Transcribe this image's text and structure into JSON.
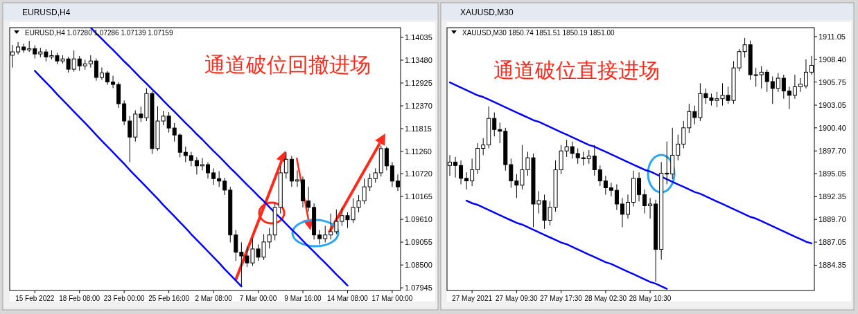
{
  "chart_data": [
    {
      "type": "candlestick",
      "subtitle": "EURUSD,H4",
      "title": "EURUSD,H4  1.07280 1.07286 1.07139 1.07159",
      "annotations": [
        "通道破位回撤进场"
      ],
      "categories": [
        null,
        null,
        null,
        null,
        "15 Feb 2022",
        null,
        null,
        null,
        null,
        null,
        null,
        null,
        "18 Feb 08:00",
        null,
        null,
        null,
        null,
        null,
        null,
        null,
        "23 Feb 00:00",
        null,
        null,
        null,
        null,
        null,
        null,
        null,
        "25 Feb 16:00",
        null,
        null,
        null,
        null,
        null,
        null,
        null,
        "2 Mar 08:00",
        null,
        null,
        null,
        null,
        null,
        null,
        null,
        "7 Mar 00:00",
        null,
        null,
        null,
        null,
        null,
        null,
        null,
        "9 Mar 16:00",
        null,
        null,
        null,
        null,
        null,
        null,
        null,
        "14 Mar 08:00",
        null,
        null,
        null,
        null,
        null,
        null,
        null,
        "17 Mar 00:00",
        null
      ],
      "ohlc": [
        [
          1.136,
          1.1385,
          1.133,
          1.1368
        ],
        [
          1.1368,
          1.1392,
          1.1362,
          1.138
        ],
        [
          1.138,
          1.1388,
          1.1366,
          1.1373
        ],
        [
          1.1373,
          1.1395,
          1.1368,
          1.1376
        ],
        [
          1.1376,
          1.1384,
          1.1352,
          1.1363
        ],
        [
          1.1363,
          1.1378,
          1.1355,
          1.1368
        ],
        [
          1.1368,
          1.1375,
          1.1345,
          1.1356
        ],
        [
          1.1356,
          1.1372,
          1.135,
          1.1359
        ],
        [
          1.1359,
          1.1366,
          1.1338,
          1.1346
        ],
        [
          1.1346,
          1.136,
          1.134,
          1.1351
        ],
        [
          1.1351,
          1.1356,
          1.1318,
          1.1326
        ],
        [
          1.1326,
          1.1372,
          1.132,
          1.1351
        ],
        [
          1.1351,
          1.1358,
          1.1322,
          1.1334
        ],
        [
          1.1334,
          1.1349,
          1.1325,
          1.1339
        ],
        [
          1.1339,
          1.136,
          1.133,
          1.1346
        ],
        [
          1.1346,
          1.1352,
          1.1298,
          1.1306
        ],
        [
          1.1306,
          1.133,
          1.13,
          1.1317
        ],
        [
          1.1317,
          1.1322,
          1.1288,
          1.1295
        ],
        [
          1.1295,
          1.131,
          1.128,
          1.1289
        ],
        [
          1.1289,
          1.1294,
          1.1232,
          1.1242
        ],
        [
          1.1242,
          1.125,
          1.119,
          1.12
        ],
        [
          1.12,
          1.1212,
          1.11,
          1.1161
        ],
        [
          1.1161,
          1.1226,
          1.115,
          1.1217
        ],
        [
          1.1217,
          1.1235,
          1.1198,
          1.1208
        ],
        [
          1.1208,
          1.128,
          1.12,
          1.1267
        ],
        [
          1.1267,
          1.1272,
          1.112,
          1.1133
        ],
        [
          1.1133,
          1.1236,
          1.1128,
          1.12
        ],
        [
          1.12,
          1.1225,
          1.119,
          1.1212
        ],
        [
          1.1212,
          1.1222,
          1.1172,
          1.1183
        ],
        [
          1.1183,
          1.1195,
          1.115,
          1.1166
        ],
        [
          1.1166,
          1.117,
          1.1112,
          1.1124
        ],
        [
          1.1124,
          1.1138,
          1.11,
          1.1116
        ],
        [
          1.1116,
          1.1125,
          1.109,
          1.1104
        ],
        [
          1.1104,
          1.1112,
          1.107,
          1.1091
        ],
        [
          1.1091,
          1.111,
          1.108,
          1.1094
        ],
        [
          1.1094,
          1.11,
          1.106,
          1.1074
        ],
        [
          1.1074,
          1.1085,
          1.1045,
          1.106
        ],
        [
          1.106,
          1.1078,
          1.104,
          1.1054
        ],
        [
          1.1054,
          1.1062,
          1.102,
          1.1032
        ],
        [
          1.1032,
          1.104,
          1.0905,
          1.0923
        ],
        [
          1.0923,
          1.0935,
          1.086,
          1.0881
        ],
        [
          1.0881,
          1.0905,
          1.08,
          1.0872
        ],
        [
          1.0872,
          1.0895,
          1.0845,
          1.0855
        ],
        [
          1.0855,
          1.0915,
          1.0848,
          1.0889
        ],
        [
          1.0889,
          1.09,
          1.086,
          1.0869
        ],
        [
          1.0869,
          1.0925,
          1.0862,
          1.0906
        ],
        [
          1.0906,
          1.094,
          1.089,
          1.0923
        ],
        [
          1.0923,
          1.1,
          1.091,
          1.099
        ],
        [
          1.099,
          1.109,
          1.0975,
          1.1074
        ],
        [
          1.1074,
          1.1124,
          1.106,
          1.1107
        ],
        [
          1.1107,
          1.1115,
          1.104,
          1.1054
        ],
        [
          1.1054,
          1.108,
          1.104,
          1.1057
        ],
        [
          1.1057,
          1.1065,
          1.099,
          1.1006
        ],
        [
          1.1006,
          1.104,
          1.098,
          1.099
        ],
        [
          1.099,
          1.1,
          1.0912,
          1.0923
        ],
        [
          1.0923,
          1.0935,
          1.09,
          1.0914
        ],
        [
          1.0914,
          1.0945,
          1.0905,
          1.0923
        ],
        [
          1.0923,
          1.0975,
          1.0912,
          1.0931
        ],
        [
          1.0931,
          1.0985,
          1.0925,
          1.0956
        ],
        [
          1.0956,
          1.099,
          1.0945,
          1.097
        ],
        [
          1.097,
          1.0978,
          1.094,
          1.096
        ],
        [
          1.096,
          1.1012,
          1.0952,
          1.099
        ],
        [
          1.099,
          1.102,
          1.0978,
          1.1006
        ],
        [
          1.1006,
          1.106,
          1.0998,
          1.104
        ],
        [
          1.104,
          1.1072,
          1.103,
          1.106
        ],
        [
          1.106,
          1.1085,
          1.105,
          1.1074
        ],
        [
          1.1074,
          1.114,
          1.1065,
          1.1133
        ],
        [
          1.1133,
          1.1138,
          1.108,
          1.1091
        ],
        [
          1.1091,
          1.11,
          1.104,
          1.1054
        ],
        [
          1.1054,
          1.107,
          1.103,
          1.104
        ]
      ],
      "series": [
        {
          "type": "line",
          "color": "#0000ff",
          "values": [
            null,
            null,
            null,
            null,
            null,
            null,
            null,
            null,
            null,
            null,
            null,
            null,
            null,
            null,
            1.1427,
            1.1413,
            1.14,
            1.1386,
            1.1373,
            1.1359,
            1.1345,
            1.1332,
            1.1318,
            1.1304,
            1.1291,
            1.1277,
            1.1264,
            1.125,
            1.1236,
            1.1223,
            1.1209,
            1.1195,
            1.1182,
            1.1168,
            1.1155,
            1.1141,
            1.1127,
            1.1114,
            1.11,
            1.1086,
            1.1073,
            1.1059,
            1.1045,
            1.1032,
            1.1018,
            1.1005,
            1.0991,
            1.0977,
            1.0964,
            1.095,
            1.0936,
            1.0923,
            1.0909,
            1.0895,
            1.0882,
            1.0868,
            1.0855,
            1.0841,
            1.0827,
            1.0814,
            1.08,
            null,
            null,
            null,
            null,
            null,
            null,
            null,
            null,
            null
          ]
        },
        {
          "type": "line",
          "color": "#0000ff",
          "values": [
            null,
            null,
            null,
            null,
            1.1322,
            1.1308,
            1.1294,
            1.128,
            1.1265,
            1.1251,
            1.1237,
            1.1223,
            1.1209,
            1.1195,
            1.1181,
            1.1166,
            1.1152,
            1.1138,
            1.1124,
            1.111,
            1.1096,
            1.1081,
            1.1067,
            1.1053,
            1.1039,
            1.1025,
            1.1011,
            1.0996,
            1.0982,
            1.0968,
            1.0954,
            1.094,
            1.0925,
            1.0911,
            1.0897,
            1.0883,
            1.0869,
            1.0855,
            1.084,
            1.0826,
            1.0812,
            1.0798,
            null,
            null,
            null,
            null,
            null,
            null,
            null,
            null,
            null,
            null,
            null,
            null,
            null,
            null,
            null,
            null,
            null,
            null,
            null,
            null,
            null,
            null,
            null,
            null,
            null,
            null,
            null,
            null
          ]
        }
      ],
      "ylim": [
        1.0788,
        1.1427
      ],
      "yticks": [
        {
          "value": 1.14035,
          "label": "1.14035"
        },
        {
          "value": 1.1348,
          "label": "1.13480"
        },
        {
          "value": 1.12925,
          "label": "1.12925"
        },
        {
          "value": 1.1237,
          "label": "1.12370"
        },
        {
          "value": 1.11815,
          "label": "1.11815"
        },
        {
          "value": 1.1126,
          "label": "1.11260"
        },
        {
          "value": 1.1072,
          "label": "1.10720"
        },
        {
          "value": 1.10165,
          "label": "1.10165"
        },
        {
          "value": 1.0961,
          "label": "1.09610"
        },
        {
          "value": 1.09055,
          "label": "1.09055"
        },
        {
          "value": 1.085,
          "label": "1.08500"
        },
        {
          "value": 1.07945,
          "label": "1.07945"
        }
      ]
    },
    {
      "type": "candlestick",
      "subtitle": "XAUUSD,M30",
      "title": "XAUUSD,M30  1850.74 1851.51 1850.19 1851.00",
      "annotations": [
        "通道破位直接进场"
      ],
      "categories": [
        null,
        null,
        null,
        null,
        "27 May 2021",
        null,
        null,
        null,
        null,
        null,
        null,
        null,
        "27 May 09:30",
        null,
        null,
        null,
        null,
        null,
        null,
        null,
        "27 May 17:30",
        null,
        null,
        null,
        null,
        null,
        null,
        null,
        "28 May 02:30",
        null,
        null,
        null,
        null,
        null,
        null,
        null,
        "28 May 10:30",
        null,
        null,
        null,
        null,
        null,
        null,
        null,
        null,
        null,
        null,
        null,
        null,
        null,
        null,
        null,
        null,
        null,
        null,
        null,
        null,
        null,
        null,
        null,
        null,
        null,
        null,
        null,
        null,
        null
      ],
      "ohlc": [
        [
          1896.0,
          1897.2,
          1894.8,
          1896.4
        ],
        [
          1896.4,
          1897.0,
          1894.6,
          1896.0
        ],
        [
          1896.0,
          1896.6,
          1893.8,
          1894.5
        ],
        [
          1894.5,
          1895.2,
          1893.2,
          1894.2
        ],
        [
          1894.2,
          1896.8,
          1893.6,
          1895.5
        ],
        [
          1895.5,
          1898.6,
          1895.0,
          1898.0
        ],
        [
          1898.0,
          1899.2,
          1897.2,
          1898.4
        ],
        [
          1898.4,
          1902.9,
          1898.0,
          1901.5
        ],
        [
          1901.5,
          1902.2,
          1899.4,
          1900.2
        ],
        [
          1900.2,
          1901.0,
          1898.6,
          1900.0
        ],
        [
          1900.0,
          1900.4,
          1895.4,
          1896.1
        ],
        [
          1896.1,
          1896.8,
          1893.4,
          1894.2
        ],
        [
          1894.2,
          1895.0,
          1892.2,
          1893.7
        ],
        [
          1893.7,
          1898.4,
          1893.2,
          1895.5
        ],
        [
          1895.5,
          1897.6,
          1894.8,
          1896.9
        ],
        [
          1896.9,
          1897.4,
          1888.8,
          1891.5
        ],
        [
          1891.5,
          1893.0,
          1890.4,
          1891.9
        ],
        [
          1891.9,
          1892.6,
          1888.6,
          1889.6
        ],
        [
          1889.6,
          1891.8,
          1889.0,
          1891.1
        ],
        [
          1891.1,
          1896.6,
          1890.6,
          1895.5
        ],
        [
          1895.5,
          1898.4,
          1895.0,
          1897.7
        ],
        [
          1897.7,
          1899.0,
          1897.0,
          1898.2
        ],
        [
          1898.2,
          1898.8,
          1896.8,
          1897.4
        ],
        [
          1897.4,
          1898.0,
          1896.2,
          1896.9
        ],
        [
          1896.9,
          1897.6,
          1896.0,
          1896.8
        ],
        [
          1896.8,
          1897.8,
          1896.2,
          1897.1
        ],
        [
          1897.1,
          1898.4,
          1894.8,
          1895.5
        ],
        [
          1895.5,
          1896.0,
          1893.6,
          1894.2
        ],
        [
          1894.2,
          1894.8,
          1892.6,
          1893.4
        ],
        [
          1893.4,
          1894.0,
          1892.4,
          1893.1
        ],
        [
          1893.1,
          1893.8,
          1890.8,
          1891.5
        ],
        [
          1891.5,
          1892.2,
          1888.8,
          1890.3
        ],
        [
          1890.3,
          1892.6,
          1889.8,
          1891.7
        ],
        [
          1891.7,
          1895.4,
          1891.2,
          1894.5
        ],
        [
          1894.5,
          1895.2,
          1891.8,
          1892.6
        ],
        [
          1892.6,
          1893.2,
          1890.4,
          1891.3
        ],
        [
          1891.3,
          1892.2,
          1889.8,
          1891.5
        ],
        [
          1891.5,
          1892.0,
          1882.4,
          1886.2
        ],
        [
          1886.2,
          1896.4,
          1885.0,
          1895.1
        ],
        [
          1895.1,
          1898.8,
          1893.8,
          1895.0
        ],
        [
          1895.0,
          1900.4,
          1894.4,
          1897.2
        ],
        [
          1897.2,
          1899.6,
          1896.6,
          1898.5
        ],
        [
          1898.5,
          1901.2,
          1898.0,
          1900.4
        ],
        [
          1900.4,
          1903.2,
          1899.8,
          1902.3
        ],
        [
          1902.3,
          1903.0,
          1900.8,
          1901.6
        ],
        [
          1901.6,
          1905.6,
          1901.2,
          1904.4
        ],
        [
          1904.4,
          1905.0,
          1903.2,
          1903.9
        ],
        [
          1903.9,
          1904.4,
          1903.0,
          1903.6
        ],
        [
          1903.6,
          1904.6,
          1902.8,
          1903.8
        ],
        [
          1903.8,
          1905.6,
          1903.0,
          1904.2
        ],
        [
          1904.2,
          1905.2,
          1903.2,
          1903.6
        ],
        [
          1903.6,
          1908.2,
          1903.2,
          1907.4
        ],
        [
          1907.4,
          1909.6,
          1907.0,
          1909.3
        ],
        [
          1909.3,
          1910.9,
          1908.6,
          1910.1
        ],
        [
          1910.1,
          1910.6,
          1906.0,
          1906.6
        ],
        [
          1906.6,
          1907.4,
          1905.2,
          1906.6
        ],
        [
          1906.6,
          1907.6,
          1905.0,
          1906.9
        ],
        [
          1906.9,
          1907.2,
          1904.6,
          1905.8
        ],
        [
          1905.8,
          1906.4,
          1903.2,
          1905.0
        ],
        [
          1905.0,
          1906.8,
          1904.6,
          1906.2
        ],
        [
          1906.2,
          1906.6,
          1903.8,
          1904.7
        ],
        [
          1904.7,
          1905.2,
          1902.6,
          1904.2
        ],
        [
          1904.2,
          1906.6,
          1903.8,
          1905.2
        ],
        [
          1905.2,
          1906.2,
          1904.6,
          1905.5
        ],
        [
          1905.3,
          1908.4,
          1905.0,
          1906.9
        ],
        [
          1906.9,
          1908.8,
          1906.6,
          1907.7
        ]
      ],
      "series": [
        {
          "type": "line",
          "color": "#0000ff",
          "values": [
            1905.7,
            1905.4,
            1905.1,
            1904.8,
            1904.5,
            1904.2,
            1904.0,
            1903.7,
            1903.4,
            1903.1,
            1902.8,
            1902.5,
            1902.2,
            1901.9,
            1901.6,
            1901.3,
            1901.1,
            1900.8,
            1900.5,
            1900.2,
            1899.9,
            1899.6,
            1899.3,
            1899.0,
            1898.7,
            1898.4,
            1898.2,
            1897.9,
            1897.6,
            1897.3,
            1897.0,
            1896.7,
            1896.4,
            1896.1,
            1895.8,
            1895.5,
            1895.3,
            1895.0,
            1894.7,
            1894.4,
            1894.1,
            1893.8,
            1893.5,
            1893.2,
            1892.9,
            1892.7,
            1892.4,
            1892.1,
            1891.8,
            1891.5,
            1891.2,
            1890.9,
            1890.6,
            1890.3,
            1890.0,
            1889.8,
            1889.5,
            1889.2,
            1888.9,
            1888.6,
            1888.3,
            1888.0,
            1887.7,
            1887.4,
            1887.1,
            1886.9
          ]
        },
        {
          "type": "line",
          "color": "#0000ff",
          "values": [
            null,
            null,
            null,
            1891.9,
            1891.6,
            1891.4,
            1891.1,
            1890.8,
            1890.5,
            1890.2,
            1889.9,
            1889.6,
            1889.3,
            1889.1,
            1888.8,
            1888.5,
            1888.2,
            1887.9,
            1887.6,
            1887.3,
            1887.0,
            1886.8,
            1886.5,
            1886.2,
            1885.9,
            1885.6,
            1885.3,
            1885.0,
            1884.7,
            1884.5,
            1884.2,
            1883.9,
            1883.6,
            1883.3,
            1883.0,
            1882.7,
            1882.4,
            1882.2,
            1881.9,
            1881.6,
            null,
            null,
            null,
            null,
            null,
            null,
            null,
            null,
            null,
            null,
            null,
            null,
            null,
            null,
            null,
            null,
            null,
            null,
            null,
            null,
            null,
            null,
            null,
            null,
            null,
            null
          ]
        }
      ],
      "ylim": [
        1881.4,
        1912.1
      ],
      "yticks": [
        {
          "value": 1911.05,
          "label": "1911.05"
        },
        {
          "value": 1908.4,
          "label": "1908.40"
        },
        {
          "value": 1905.75,
          "label": "1905.75"
        },
        {
          "value": 1903.05,
          "label": "1903.05"
        },
        {
          "value": 1900.4,
          "label": "1900.40"
        },
        {
          "value": 1897.7,
          "label": "1897.70"
        },
        {
          "value": 1895.05,
          "label": "1895.05"
        },
        {
          "value": 1892.35,
          "label": "1892.35"
        },
        {
          "value": 1889.7,
          "label": "1889.70"
        },
        {
          "value": 1887.05,
          "label": "1887.05"
        },
        {
          "value": 1884.35,
          "label": "1884.35"
        }
      ]
    }
  ]
}
